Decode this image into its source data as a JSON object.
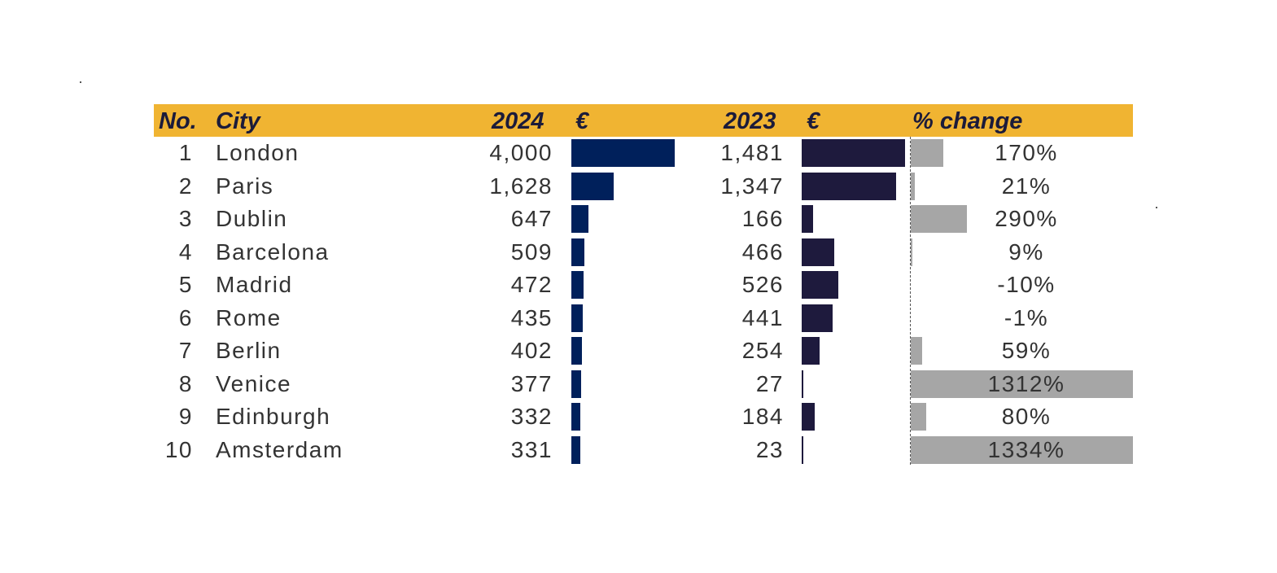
{
  "chart_data": {
    "type": "table",
    "columns": {
      "no": "No.",
      "city": "City",
      "y2024": "2024",
      "y2023": "2023",
      "currency": "€",
      "change": "% change"
    },
    "rows": [
      {
        "no": "1",
        "city": "London",
        "v2024": 4000,
        "v2024_label": "4,000",
        "v2023": 1481,
        "v2023_label": "1,481",
        "change": 170,
        "change_label": "170%"
      },
      {
        "no": "2",
        "city": "Paris",
        "v2024": 1628,
        "v2024_label": "1,628",
        "v2023": 1347,
        "v2023_label": "1,347",
        "change": 21,
        "change_label": "21%"
      },
      {
        "no": "3",
        "city": "Dublin",
        "v2024": 647,
        "v2024_label": "647",
        "v2023": 166,
        "v2023_label": "166",
        "change": 290,
        "change_label": "290%"
      },
      {
        "no": "4",
        "city": "Barcelona",
        "v2024": 509,
        "v2024_label": "509",
        "v2023": 466,
        "v2023_label": "466",
        "change": 9,
        "change_label": "9%"
      },
      {
        "no": "5",
        "city": "Madrid",
        "v2024": 472,
        "v2024_label": "472",
        "v2023": 526,
        "v2023_label": "526",
        "change": -10,
        "change_label": "-10%"
      },
      {
        "no": "6",
        "city": "Rome",
        "v2024": 435,
        "v2024_label": "435",
        "v2023": 441,
        "v2023_label": "441",
        "change": -1,
        "change_label": "-1%"
      },
      {
        "no": "7",
        "city": "Berlin",
        "v2024": 402,
        "v2024_label": "402",
        "v2023": 254,
        "v2023_label": "254",
        "change": 59,
        "change_label": "59%"
      },
      {
        "no": "8",
        "city": "Venice",
        "v2024": 377,
        "v2024_label": "377",
        "v2023": 27,
        "v2023_label": "27",
        "change": 1312,
        "change_label": "1312%"
      },
      {
        "no": "9",
        "city": "Edinburgh",
        "v2024": 332,
        "v2024_label": "332",
        "v2023": 184,
        "v2023_label": "184",
        "change": 80,
        "change_label": "80%"
      },
      {
        "no": "10",
        "city": "Amsterdam",
        "v2024": 331,
        "v2024_label": "331",
        "v2023": 23,
        "v2023_label": "23",
        "change": 1334,
        "change_label": "1334%"
      }
    ],
    "bar_scales": {
      "v2024_max": 4000,
      "v2023_max": 1481,
      "change_max": 1150
    },
    "colors": {
      "header": "#f0b432",
      "bar2024": "#00205b",
      "bar2023": "#1e1a3d",
      "change_bar": "#a6a6a6",
      "text": "#333333"
    }
  }
}
